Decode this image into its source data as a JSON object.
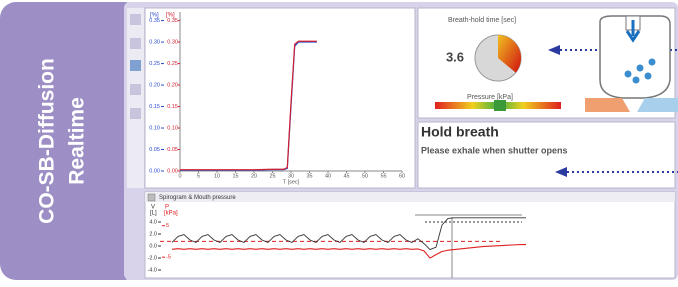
{
  "sidebar": {
    "title_line1": "CO-SB-Diffusion",
    "title_line2": "Realtime"
  },
  "concentration_plot": {
    "y_label_left": "[%]",
    "y_label_right": "[%]",
    "yticks": [
      {
        "value": 0.35,
        "label": "0.35"
      },
      {
        "value": 0.3,
        "label": "0.30"
      },
      {
        "value": 0.25,
        "label": "0.25"
      },
      {
        "value": 0.2,
        "label": "0.20"
      },
      {
        "value": 0.15,
        "label": "0.15"
      },
      {
        "value": 0.1,
        "label": "0.10"
      },
      {
        "value": 0.05,
        "label": "0.05"
      },
      {
        "value": 0,
        "label": "0.00"
      }
    ],
    "yticks_right": [
      {
        "value": 0.35,
        "label": "0.35"
      },
      {
        "value": 0.3,
        "label": "0.30"
      },
      {
        "value": 0.25,
        "label": "0.25"
      },
      {
        "value": 0.2,
        "label": "0.20"
      },
      {
        "value": 0.15,
        "label": "0.15"
      },
      {
        "value": 0.1,
        "label": "0.10"
      },
      {
        "value": 0.05,
        "label": "0.05"
      },
      {
        "value": 0,
        "label": "0.00"
      }
    ],
    "ylim": [
      0,
      0.37
    ],
    "xlim": [
      0,
      60
    ],
    "xticks": [
      0,
      5,
      10,
      15,
      20,
      25,
      30,
      35,
      40,
      45,
      50,
      55,
      60
    ],
    "x_label": "T [sec]",
    "series": [
      {
        "color": "#2a4bd0",
        "x": [
          0,
          5,
          10,
          15,
          20,
          25,
          28,
          29,
          30,
          31,
          32,
          33,
          35,
          37
        ],
        "values": [
          0.002,
          0.002,
          0.002,
          0.002,
          0.002,
          0.003,
          0.003,
          0.006,
          0.15,
          0.29,
          0.3,
          0.3,
          0.3,
          0.3
        ]
      },
      {
        "color": "#d02030",
        "x": [
          0,
          5,
          10,
          15,
          20,
          25,
          28,
          29,
          30,
          31,
          32,
          33,
          35,
          37
        ],
        "values": [
          0.003,
          0.003,
          0.003,
          0.003,
          0.003,
          0.004,
          0.004,
          0.008,
          0.16,
          0.295,
          0.302,
          0.302,
          0.302,
          0.302
        ]
      }
    ]
  },
  "breath_hold": {
    "title": "Breath-hold time [sec]",
    "value": "3.6",
    "wedge_percent": 36,
    "pressure_label": "Pressure [kPa]"
  },
  "instruction": {
    "heading": "Hold breath",
    "text": "Please exhale when shutter opens"
  },
  "spirogram": {
    "title": "Spirogram & Mouth pressure",
    "volume_axis": {
      "symbol": "V",
      "unit": "[L]",
      "ylim": [
        -5,
        6
      ],
      "ticks": [
        {
          "value": 4,
          "label": "4.0"
        },
        {
          "value": 2,
          "label": "2.0"
        },
        {
          "value": 0,
          "label": "0.0"
        },
        {
          "value": -2,
          "label": "-2.0"
        },
        {
          "value": -4,
          "label": "-4.0"
        }
      ]
    },
    "pressure_axis": {
      "symbol": "P",
      "unit": "[kPa]",
      "ylim": [
        -11,
        10
      ],
      "ticks": [
        5,
        -5
      ]
    },
    "volume": {
      "color": "#333333",
      "values": [
        0.6,
        1.6,
        1.9,
        1.0,
        0.6,
        1.6,
        1.9,
        1.0,
        0.6,
        1.6,
        1.9,
        1.0,
        0.6,
        1.6,
        1.9,
        1.0,
        0.6,
        1.6,
        1.9,
        1.0,
        0.6,
        1.6,
        1.9,
        1.0,
        0.6,
        1.6,
        1.9,
        1.0,
        0.6,
        1.6,
        1.9,
        1.0,
        0.6,
        1.6,
        1.9,
        1.0,
        0.6,
        1.6,
        1.9,
        1.0,
        0.6,
        1.2,
        0.4,
        -0.6,
        -0.2,
        3.5,
        4.6,
        4.7,
        4.7,
        4.7,
        4.7,
        4.7,
        4.7,
        4.7,
        4.7,
        4.7,
        4.7,
        4.7,
        4.7,
        4.7
      ]
    },
    "pressure": {
      "color": "#e02020",
      "values": [
        -2.5,
        -2.3,
        -2.5,
        -2.3,
        -2.5,
        -2.3,
        -2.5,
        -2.3,
        -2.5,
        -2.3,
        -2.5,
        -2.3,
        -2.5,
        -2.3,
        -2.5,
        -2.3,
        -2.5,
        -2.3,
        -2.5,
        -2.3,
        -2.5,
        -2.3,
        -2.5,
        -2.3,
        -2.5,
        -2.3,
        -2.5,
        -2.3,
        -2.5,
        -2.3,
        -2.5,
        -2.3,
        -2.5,
        -2.3,
        -2.5,
        -2.3,
        -2.5,
        -2.3,
        -2.5,
        -2.3,
        -2.5,
        -2.4,
        -3.0,
        -5.3,
        -4.2,
        -3.2,
        -2.8,
        -2.6,
        -2.4,
        -2.2,
        -2.0,
        -1.8,
        -1.6,
        -1.5,
        -1.4,
        -1.3,
        -1.2,
        -1.1,
        -1.0,
        -1.0
      ]
    }
  }
}
